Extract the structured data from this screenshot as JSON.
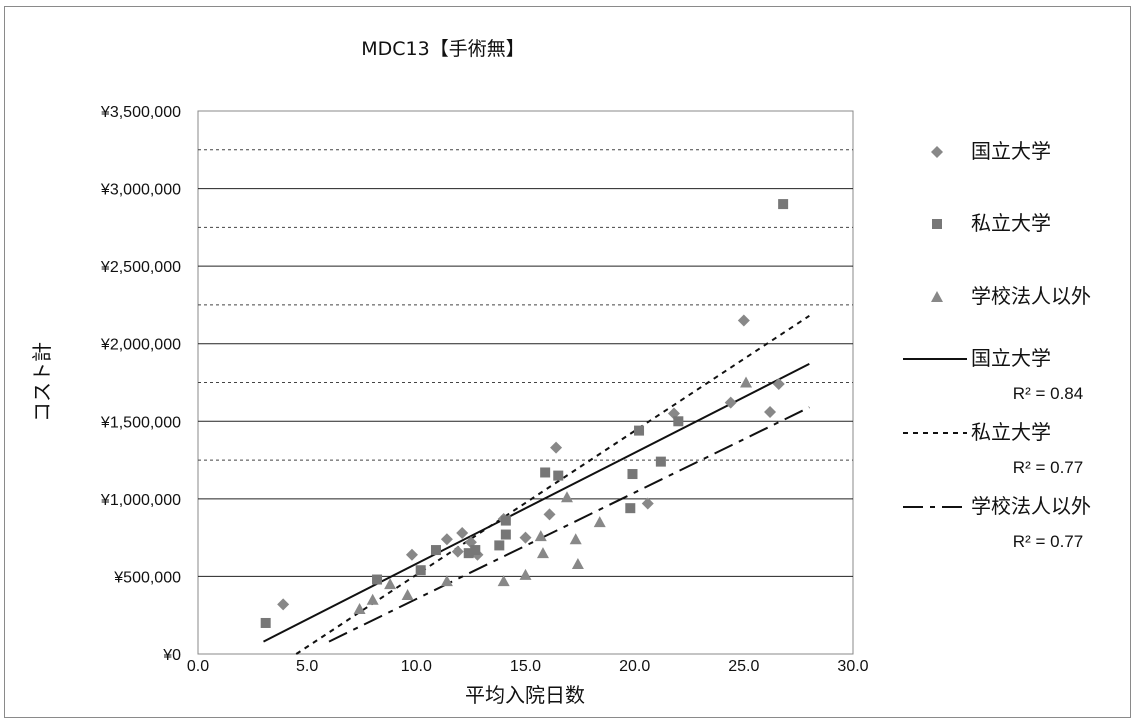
{
  "chart_data": {
    "type": "scatter",
    "title": "MDC13【手術無】",
    "xlabel": "平均入院日数",
    "ylabel": "コスト計",
    "xlim": [
      0,
      30
    ],
    "ylim": [
      0,
      3500000
    ],
    "x_ticks": [
      "0.0",
      "5.0",
      "10.0",
      "15.0",
      "20.0",
      "25.0",
      "30.0"
    ],
    "y_ticks": [
      "¥0",
      "¥500,000",
      "¥1,000,000",
      "¥1,500,000",
      "¥2,000,000",
      "¥2,500,000",
      "¥3,000,000",
      "¥3,500,000"
    ],
    "grid": true,
    "legend_position": "right",
    "series": [
      {
        "name": "国立大学",
        "marker": "diamond",
        "color": "#888888",
        "points": [
          [
            3.9,
            320000
          ],
          [
            9.8,
            640000
          ],
          [
            11.4,
            740000
          ],
          [
            11.9,
            660000
          ],
          [
            12.1,
            780000
          ],
          [
            12.5,
            720000
          ],
          [
            12.8,
            640000
          ],
          [
            14.0,
            870000
          ],
          [
            15.0,
            750000
          ],
          [
            16.1,
            900000
          ],
          [
            16.4,
            1330000
          ],
          [
            20.6,
            970000
          ],
          [
            21.8,
            1550000
          ],
          [
            24.4,
            1620000
          ],
          [
            25.0,
            2150000
          ],
          [
            26.2,
            1560000
          ],
          [
            26.6,
            1740000
          ]
        ],
        "trendline": {
          "label": "国立大学",
          "r2": "R² = 0.84",
          "style": "solid",
          "from": [
            3.0,
            80000
          ],
          "to": [
            28.0,
            1870000
          ]
        }
      },
      {
        "name": "私立大学",
        "marker": "square",
        "color": "#777777",
        "points": [
          [
            3.1,
            200000
          ],
          [
            8.2,
            480000
          ],
          [
            10.2,
            540000
          ],
          [
            10.9,
            670000
          ],
          [
            12.4,
            650000
          ],
          [
            12.7,
            670000
          ],
          [
            13.8,
            700000
          ],
          [
            14.1,
            770000
          ],
          [
            14.1,
            860000
          ],
          [
            15.9,
            1170000
          ],
          [
            16.5,
            1150000
          ],
          [
            19.8,
            940000
          ],
          [
            19.9,
            1160000
          ],
          [
            20.2,
            1440000
          ],
          [
            21.2,
            1240000
          ],
          [
            22.0,
            1500000
          ],
          [
            26.8,
            2900000
          ]
        ],
        "trendline": {
          "label": "私立大学",
          "r2": "R² = 0.77",
          "style": "dotted",
          "from": [
            4.5,
            0
          ],
          "to": [
            28.0,
            2180000
          ]
        }
      },
      {
        "name": "学校法人以外",
        "marker": "triangle",
        "color": "#888888",
        "points": [
          [
            7.4,
            290000
          ],
          [
            8.0,
            350000
          ],
          [
            8.8,
            450000
          ],
          [
            9.6,
            380000
          ],
          [
            11.4,
            470000
          ],
          [
            14.0,
            470000
          ],
          [
            15.0,
            510000
          ],
          [
            15.7,
            760000
          ],
          [
            15.8,
            650000
          ],
          [
            16.9,
            1010000
          ],
          [
            17.3,
            740000
          ],
          [
            17.4,
            580000
          ],
          [
            18.4,
            850000
          ],
          [
            25.1,
            1750000
          ]
        ],
        "trendline": {
          "label": "学校法人以外",
          "r2": "R² = 0.77",
          "style": "dashdot",
          "from": [
            6.0,
            80000
          ],
          "to": [
            28.0,
            1590000
          ]
        }
      }
    ]
  }
}
